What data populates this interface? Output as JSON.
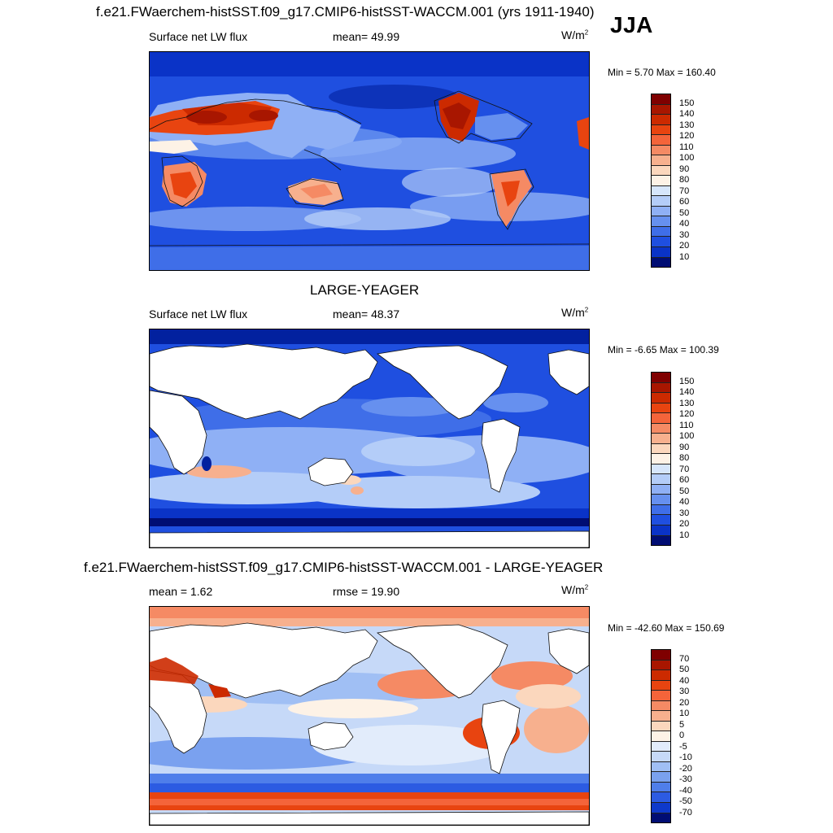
{
  "season": "JJA",
  "panel1": {
    "title": "f.e21.FWaerchem-histSST.f09_g17.CMIP6-histSST-WACCM.001 (yrs 1911-1940)",
    "variable": "Surface net LW flux",
    "stat": "mean=  49.99",
    "units_base": "W/m",
    "units_exp": "2",
    "minmax": "Min =   5.70 Max = 160.40",
    "colorbar": [
      "150",
      "140",
      "130",
      "120",
      "110",
      "100",
      "90",
      "80",
      "70",
      "60",
      "50",
      "40",
      "30",
      "20",
      "10"
    ]
  },
  "panel2": {
    "title": "LARGE-YEAGER",
    "variable": "Surface net LW flux",
    "stat": "mean=  48.37",
    "units_base": "W/m",
    "units_exp": "2",
    "minmax": "Min =  -6.65 Max = 100.39",
    "colorbar": [
      "150",
      "140",
      "130",
      "120",
      "110",
      "100",
      "90",
      "80",
      "70",
      "60",
      "50",
      "40",
      "30",
      "20",
      "10"
    ]
  },
  "panel3": {
    "title": "f.e21.FWaerchem-histSST.f09_g17.CMIP6-histSST-WACCM.001 - LARGE-YEAGER",
    "stat_left": "mean =   1.62",
    "stat_mid": "rmse =  19.90",
    "units_base": "W/m",
    "units_exp": "2",
    "minmax": "Min = -42.60 Max = 150.69",
    "colorbar": [
      "70",
      "50",
      "40",
      "30",
      "20",
      "10",
      "5",
      "0",
      "-5",
      "-10",
      "-20",
      "-30",
      "-40",
      "-50",
      "-70"
    ]
  },
  "colors": {
    "abs_scale": [
      "#7f0000",
      "#a81600",
      "#cc2a00",
      "#e84410",
      "#f4643a",
      "#f58a64",
      "#f7b08e",
      "#fbd7bd",
      "#fdf2e6",
      "#d6e6fb",
      "#b4cdf8",
      "#8fb0f5",
      "#6690ef",
      "#3f6ee8",
      "#1f4fe0",
      "#0a33c7",
      "#02219f",
      "#000d73"
    ],
    "diff_scale": [
      "#7f0000",
      "#a81600",
      "#cc2a00",
      "#e84410",
      "#f4643a",
      "#f58a64",
      "#f7b08e",
      "#fbd7bd",
      "#fdf2e6",
      "#e2ecfb",
      "#c6d9f8",
      "#a0bff4",
      "#7aa1ef",
      "#4f7eea",
      "#2c5be2",
      "#0e39cb",
      "#00219c",
      "#000d73"
    ]
  }
}
